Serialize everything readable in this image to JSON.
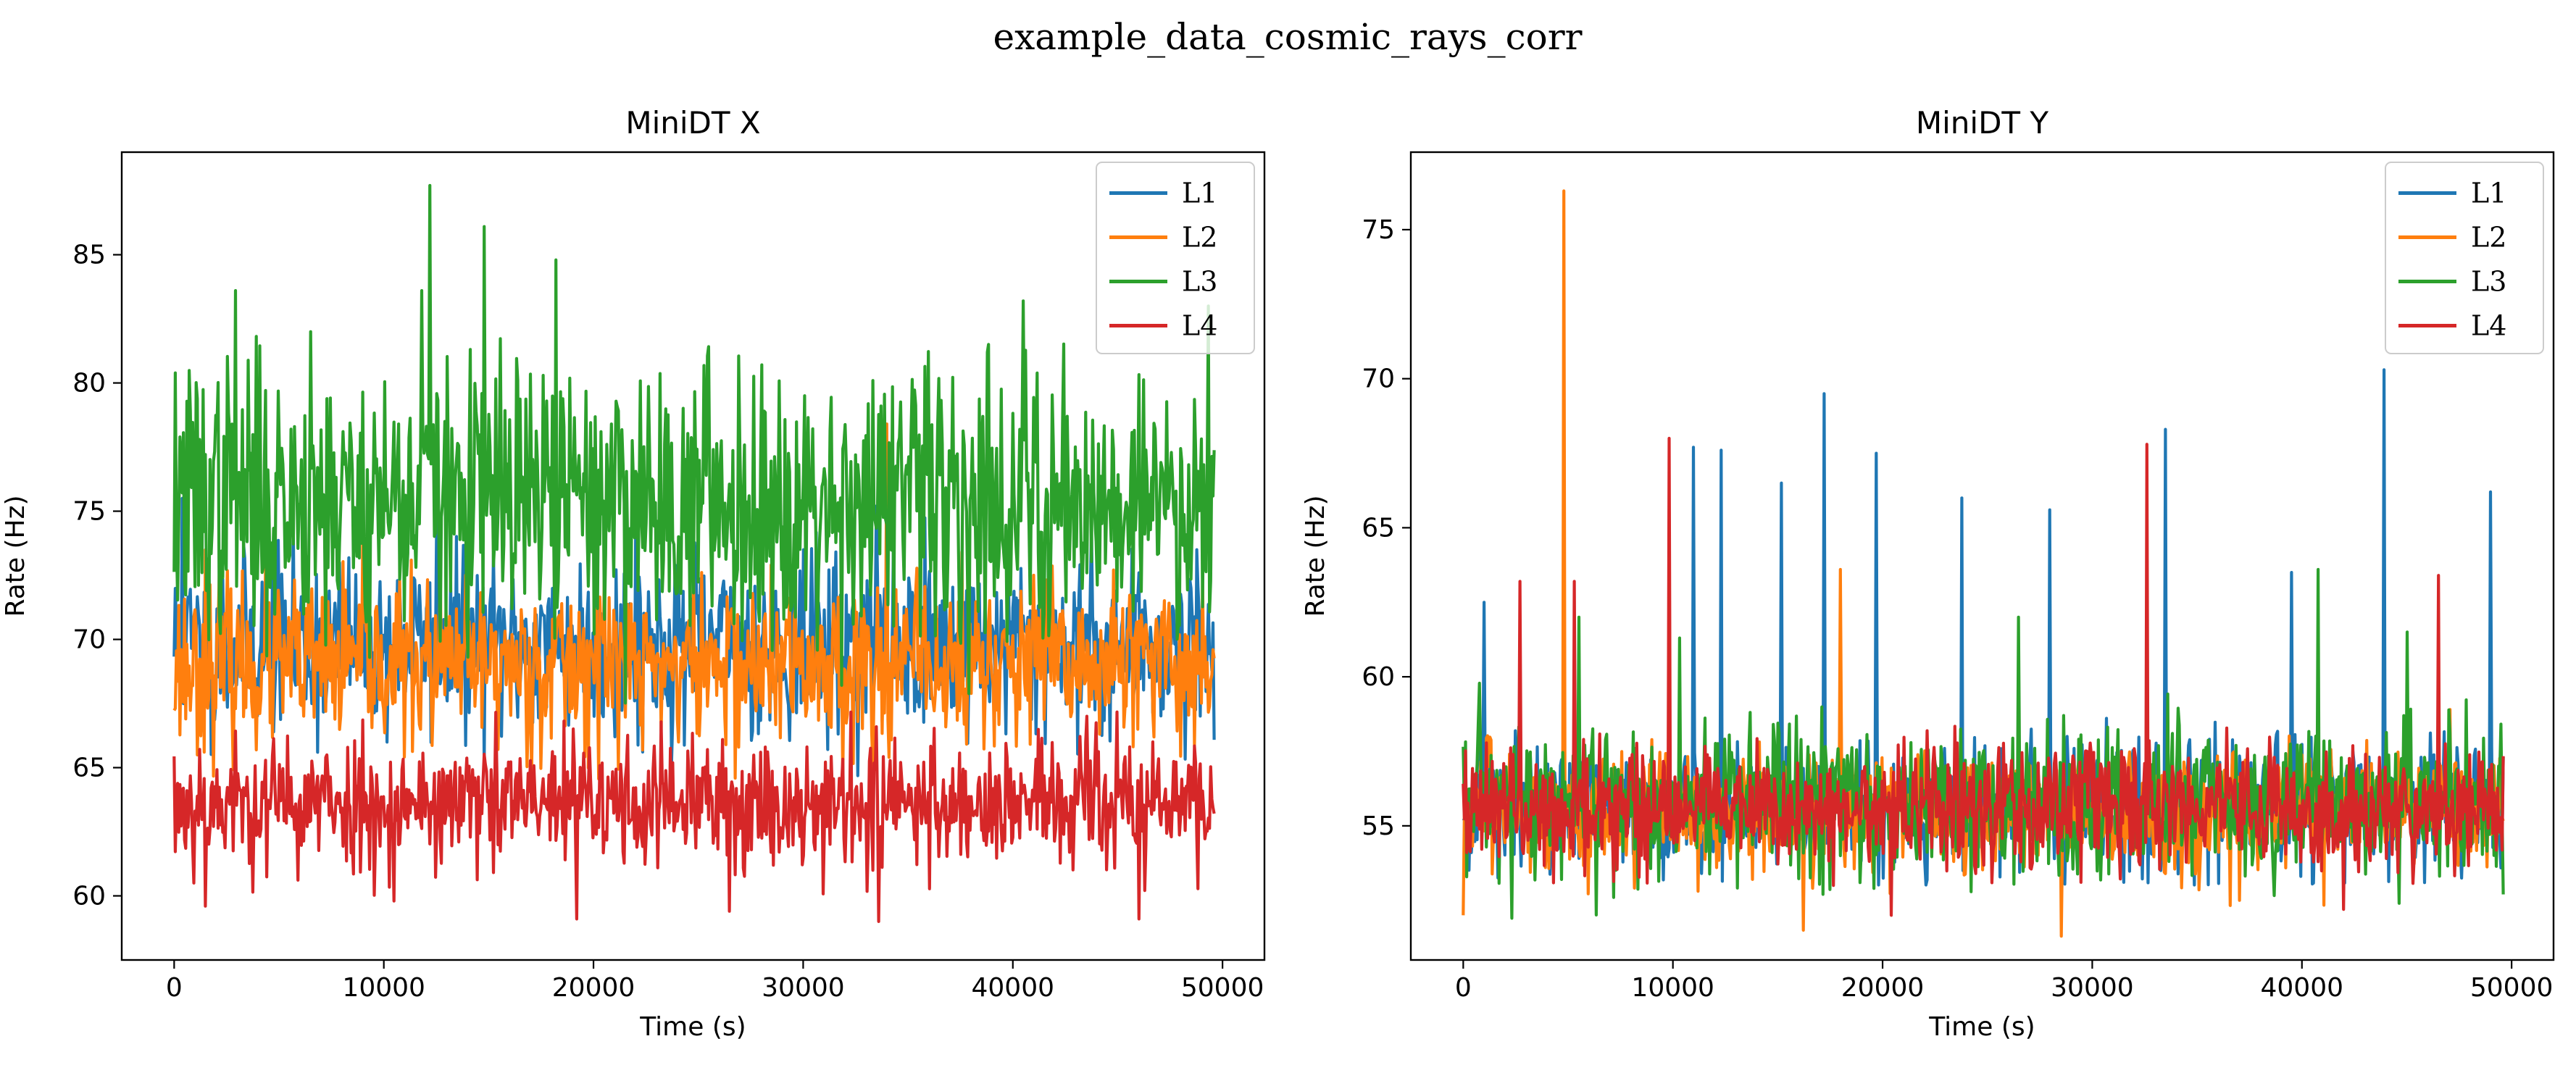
{
  "figure": {
    "suptitle": "example_data_cosmic_rays_corr"
  },
  "chart_data": [
    {
      "type": "line",
      "title": "MiniDT X",
      "xlabel": "Time (s)",
      "ylabel": "Rate (Hz)",
      "xlim": [
        -2500,
        52000
      ],
      "ylim": [
        57.5,
        89
      ],
      "xticks": [
        0,
        10000,
        20000,
        30000,
        40000,
        50000
      ],
      "xtick_labels": [
        "0",
        "10000",
        "20000",
        "30000",
        "40000",
        "50000"
      ],
      "yticks": [
        60,
        65,
        70,
        75,
        80,
        85
      ],
      "ytick_labels": [
        "60",
        "65",
        "70",
        "75",
        "80",
        "85"
      ],
      "legend_position": "upper right",
      "grid": false,
      "x_range": [
        0,
        49600
      ],
      "samples": 900,
      "series": [
        {
          "name": "L1",
          "color": "#1f77b4",
          "mean": 69.8,
          "sd": 1.7,
          "min": 64.5,
          "max": 75.5,
          "seed": 11,
          "peaks": [
            [
              400,
              75.5
            ],
            [
              12500,
              75.0
            ],
            [
              22000,
              74.5
            ],
            [
              33500,
              75.2
            ],
            [
              48800,
              73.5
            ]
          ]
        },
        {
          "name": "L2",
          "color": "#ff7f0e",
          "mean": 69.0,
          "sd": 1.6,
          "min": 64.5,
          "max": 74.0,
          "seed": 23,
          "peaks": [
            [
              34000,
              78.4
            ],
            [
              1500,
              73.5
            ],
            [
              20500,
              73.0
            ],
            [
              41000,
              72.5
            ]
          ]
        },
        {
          "name": "L3",
          "color": "#2ca02c",
          "mean": 75.5,
          "sd": 2.6,
          "min": 67.5,
          "max": 83.0,
          "seed": 37,
          "peaks": [
            [
              12200,
              87.7
            ],
            [
              14800,
              86.1
            ],
            [
              18200,
              84.8
            ],
            [
              2900,
              83.6
            ],
            [
              11800,
              83.6
            ],
            [
              40500,
              83.2
            ],
            [
              49300,
              83.0
            ],
            [
              6500,
              82.0
            ]
          ]
        },
        {
          "name": "L4",
          "color": "#d62728",
          "mean": 63.6,
          "sd": 1.3,
          "min": 60.0,
          "max": 67.5,
          "seed": 53,
          "peaks": [
            [
              33600,
              59.0
            ],
            [
              19200,
              59.1
            ],
            [
              1500,
              59.6
            ],
            [
              46000,
              59.1
            ],
            [
              26500,
              59.4
            ],
            [
              10500,
              59.8
            ]
          ]
        }
      ]
    },
    {
      "type": "line",
      "title": "MiniDT Y",
      "xlabel": "Time (s)",
      "ylabel": "Rate (Hz)",
      "xlim": [
        -2500,
        52000
      ],
      "ylim": [
        50.5,
        77.6
      ],
      "xticks": [
        0,
        10000,
        20000,
        30000,
        40000,
        50000
      ],
      "xtick_labels": [
        "0",
        "10000",
        "20000",
        "30000",
        "40000",
        "50000"
      ],
      "yticks": [
        55,
        60,
        65,
        70,
        75
      ],
      "ytick_labels": [
        "55",
        "60",
        "65",
        "70",
        "75"
      ],
      "legend_position": "upper right",
      "grid": false,
      "x_range": [
        0,
        49600
      ],
      "samples": 900,
      "series": [
        {
          "name": "L1",
          "color": "#1f77b4",
          "mean": 55.6,
          "sd": 1.1,
          "min": 53.0,
          "max": 59.5,
          "seed": 71,
          "peaks": [
            [
              17200,
              69.5
            ],
            [
              43900,
              70.3
            ],
            [
              33500,
              68.3
            ],
            [
              11000,
              67.7
            ],
            [
              12300,
              67.6
            ],
            [
              19700,
              67.5
            ],
            [
              49000,
              66.2
            ],
            [
              15200,
              66.5
            ],
            [
              23800,
              66.0
            ],
            [
              1000,
              62.5
            ],
            [
              28000,
              65.6
            ],
            [
              39500,
              63.5
            ]
          ]
        },
        {
          "name": "L2",
          "color": "#ff7f0e",
          "mean": 55.5,
          "sd": 1.0,
          "min": 52.3,
          "max": 59.0,
          "seed": 83,
          "peaks": [
            [
              4800,
              76.3
            ],
            [
              18000,
              63.6
            ],
            [
              28500,
              51.3
            ],
            [
              0,
              52.0
            ],
            [
              16200,
              51.5
            ],
            [
              37000,
              52.5
            ]
          ]
        },
        {
          "name": "L3",
          "color": "#2ca02c",
          "mean": 55.8,
          "sd": 1.3,
          "min": 52.0,
          "max": 60.5,
          "seed": 97,
          "peaks": [
            [
              40800,
              63.6
            ],
            [
              5500,
              62.0
            ],
            [
              26500,
              62.0
            ],
            [
              10300,
              61.3
            ],
            [
              45000,
              61.5
            ],
            [
              2300,
              51.9
            ],
            [
              7200,
              52.6
            ],
            [
              49600,
              52.7
            ]
          ]
        },
        {
          "name": "L4",
          "color": "#d62728",
          "mean": 55.6,
          "sd": 1.0,
          "min": 53.0,
          "max": 59.5,
          "seed": 109,
          "peaks": [
            [
              9800,
              68.0
            ],
            [
              32600,
              67.8
            ],
            [
              2700,
              63.2
            ],
            [
              5300,
              63.2
            ],
            [
              46500,
              63.4
            ],
            [
              20400,
              52.0
            ],
            [
              42000,
              52.2
            ]
          ]
        }
      ]
    }
  ]
}
